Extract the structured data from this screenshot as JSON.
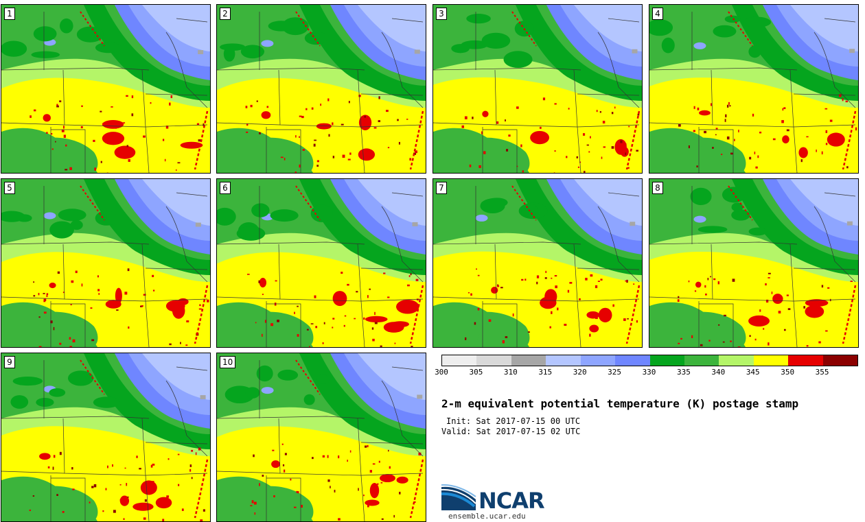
{
  "stamps": [
    {
      "label": "1"
    },
    {
      "label": "2"
    },
    {
      "label": "3"
    },
    {
      "label": "4"
    },
    {
      "label": "5"
    },
    {
      "label": "6"
    },
    {
      "label": "7"
    },
    {
      "label": "8"
    },
    {
      "label": "9"
    },
    {
      "label": "10"
    }
  ],
  "colorbar": {
    "colors": [
      "#eeeeee",
      "#d9d9d9",
      "#a6a6a6",
      "#b4c6ff",
      "#8ea5ff",
      "#6f86ff",
      "#05a51e",
      "#3cb43c",
      "#b4f568",
      "#ffff00",
      "#e60000",
      "#8b0000"
    ],
    "ticks": [
      "300",
      "305",
      "310",
      "315",
      "320",
      "325",
      "330",
      "335",
      "340",
      "345",
      "350",
      "355"
    ]
  },
  "title": "2-m equivalent potential temperature (K) postage stamp",
  "init": "Init: Sat 2017-07-15 00 UTC",
  "valid": "Valid: Sat 2017-07-15 02 UTC",
  "logo": {
    "name": "NCAR",
    "colors": {
      "primary": "#0f3f6e",
      "accent": "#1c8ad6"
    }
  },
  "url": "ensemble.ucar.edu",
  "map_colors": {
    "background_green": "#3cb43c",
    "dark_green": "#05a51e",
    "light_green": "#b4f568",
    "yellow": "#ffff00",
    "red": "#e60000",
    "dark_red": "#8b0000",
    "blue_dark": "#6f86ff",
    "blue_mid": "#8ea5ff",
    "blue_light": "#b4c6ff",
    "gray": "#a6a6a6"
  }
}
